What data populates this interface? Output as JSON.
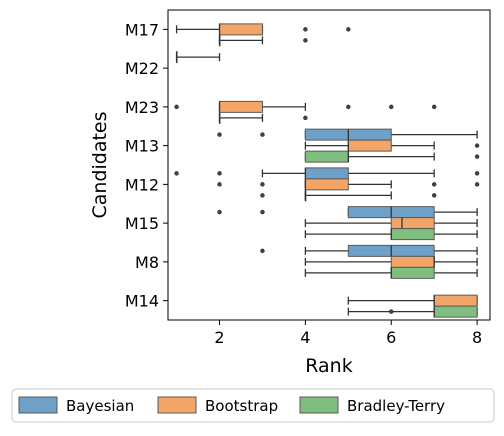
{
  "chart_data": {
    "type": "boxplot",
    "title": "",
    "xlabel": "Rank",
    "ylabel": "Candidates",
    "xlim": [
      0.8,
      8.3
    ],
    "xticks": [
      2,
      4,
      6,
      8
    ],
    "grid": false,
    "legend": {
      "placement": "bottom-center"
    },
    "categories": [
      "M17",
      "M22",
      "M23",
      "M13",
      "M12",
      "M15",
      "M8",
      "M14"
    ],
    "series": [
      {
        "name": "Bayesian",
        "color": "#6fa0c8",
        "edge": "#44749b",
        "boxes": [
          null,
          {
            "whislo": 1,
            "q1": 1,
            "med": 1,
            "q3": 1,
            "whishi": 2,
            "fliers": []
          },
          null,
          {
            "whislo": 4,
            "q1": 4,
            "med": 5,
            "q3": 6,
            "whishi": 8,
            "fliers": [
              2,
              3
            ]
          },
          {
            "whislo": 3,
            "q1": 4,
            "med": 4,
            "q3": 5,
            "whishi": 7,
            "fliers": [
              1,
              2,
              8
            ]
          },
          {
            "whislo": 5,
            "q1": 5,
            "med": 6,
            "q3": 7,
            "whishi": 8,
            "fliers": [
              2,
              3
            ]
          },
          {
            "whislo": 4,
            "q1": 5,
            "med": 6,
            "q3": 7,
            "whishi": 8,
            "fliers": [
              3
            ]
          },
          null
        ]
      },
      {
        "name": "Bootstrap",
        "color": "#f2a566",
        "edge": "#c47a3a",
        "boxes": [
          {
            "whislo": 1,
            "q1": 2,
            "med": 2,
            "q3": 3,
            "whishi": 3,
            "fliers": [
              4,
              5
            ]
          },
          null,
          {
            "whislo": 2,
            "q1": 2,
            "med": 2,
            "q3": 3,
            "whishi": 4,
            "fliers": [
              1,
              5,
              6,
              7
            ]
          },
          {
            "whislo": 4,
            "q1": 5,
            "med": 5,
            "q3": 6,
            "whishi": 7,
            "fliers": [
              8
            ]
          },
          {
            "whislo": 4,
            "q1": 4,
            "med": 4,
            "q3": 5,
            "whishi": 6,
            "fliers": [
              2,
              3,
              7,
              8
            ]
          },
          {
            "whislo": 4,
            "q1": 6,
            "med": 6.25,
            "q3": 7,
            "whishi": 8,
            "fliers": []
          },
          {
            "whislo": 4,
            "q1": 6,
            "med": 7,
            "q3": 7,
            "whishi": 8,
            "fliers": []
          },
          {
            "whislo": 5,
            "q1": 7,
            "med": 7,
            "q3": 8,
            "whishi": 8,
            "fliers": []
          }
        ]
      },
      {
        "name": "Bradley-Terry",
        "color": "#7fbe7f",
        "edge": "#4e8f4e",
        "boxes": [
          {
            "whislo": 2,
            "q1": 2,
            "med": 2,
            "q3": 2,
            "whishi": 3,
            "fliers": [
              4
            ]
          },
          null,
          {
            "whislo": 2,
            "q1": 2,
            "med": 2,
            "q3": 2,
            "whishi": 3,
            "fliers": [
              4
            ]
          },
          {
            "whislo": 4,
            "q1": 4,
            "med": 5,
            "q3": 5,
            "whishi": 7,
            "fliers": [
              8
            ]
          },
          {
            "whislo": 4,
            "q1": 4,
            "med": 4,
            "q3": 4,
            "whishi": 6,
            "fliers": [
              3,
              7
            ]
          },
          {
            "whislo": 4,
            "q1": 6,
            "med": 6,
            "q3": 7,
            "whishi": 8,
            "fliers": []
          },
          {
            "whislo": 4,
            "q1": 6,
            "med": 6,
            "q3": 7,
            "whishi": 8,
            "fliers": []
          },
          {
            "whislo": 5,
            "q1": 7,
            "med": 7,
            "q3": 8,
            "whishi": 8,
            "fliers": [
              6
            ]
          }
        ]
      }
    ]
  }
}
